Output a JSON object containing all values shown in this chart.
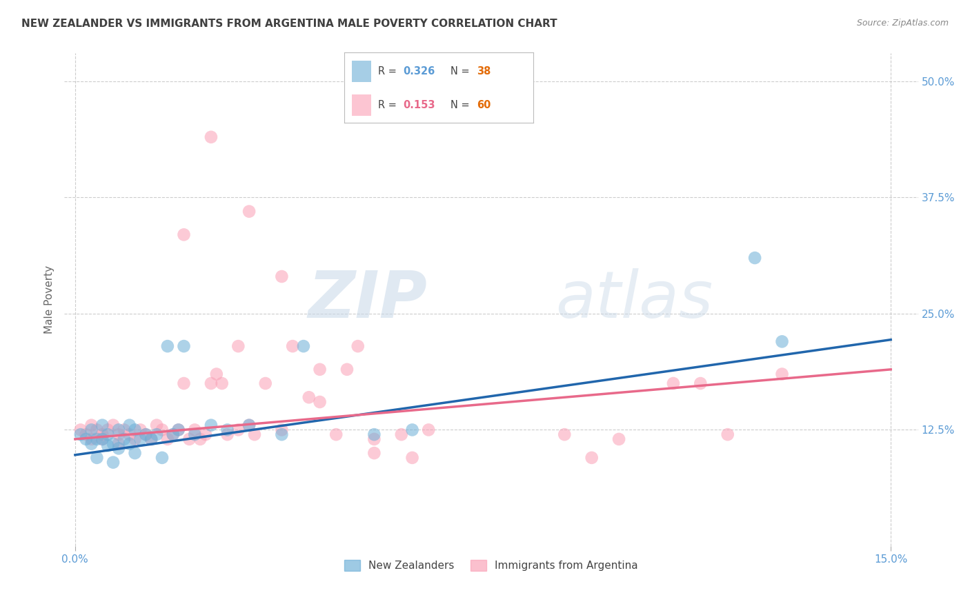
{
  "title": "NEW ZEALANDER VS IMMIGRANTS FROM ARGENTINA MALE POVERTY CORRELATION CHART",
  "source": "Source: ZipAtlas.com",
  "ylabel": "Male Poverty",
  "x_ticks": [
    0.0,
    0.15
  ],
  "x_tick_labels": [
    "0.0%",
    "15.0%"
  ],
  "y_ticks": [
    0.125,
    0.25,
    0.375,
    0.5
  ],
  "y_tick_labels": [
    "12.5%",
    "25.0%",
    "37.5%",
    "50.0%"
  ],
  "xlim": [
    -0.002,
    0.155
  ],
  "ylim": [
    0.0,
    0.53
  ],
  "blue_scatter_x": [
    0.001,
    0.002,
    0.003,
    0.003,
    0.004,
    0.004,
    0.005,
    0.005,
    0.006,
    0.006,
    0.007,
    0.007,
    0.008,
    0.008,
    0.009,
    0.01,
    0.01,
    0.011,
    0.011,
    0.012,
    0.013,
    0.014,
    0.015,
    0.016,
    0.017,
    0.018,
    0.019,
    0.02,
    0.022,
    0.025,
    0.028,
    0.032,
    0.038,
    0.042,
    0.055,
    0.062,
    0.125,
    0.13
  ],
  "blue_scatter_y": [
    0.12,
    0.115,
    0.125,
    0.11,
    0.115,
    0.095,
    0.13,
    0.115,
    0.12,
    0.108,
    0.11,
    0.09,
    0.125,
    0.105,
    0.115,
    0.13,
    0.11,
    0.125,
    0.1,
    0.115,
    0.12,
    0.115,
    0.12,
    0.095,
    0.215,
    0.12,
    0.125,
    0.215,
    0.12,
    0.13,
    0.125,
    0.13,
    0.12,
    0.215,
    0.12,
    0.125,
    0.31,
    0.22
  ],
  "pink_scatter_x": [
    0.001,
    0.002,
    0.003,
    0.003,
    0.004,
    0.005,
    0.005,
    0.006,
    0.007,
    0.008,
    0.008,
    0.009,
    0.01,
    0.011,
    0.012,
    0.013,
    0.014,
    0.015,
    0.016,
    0.017,
    0.018,
    0.019,
    0.02,
    0.021,
    0.022,
    0.023,
    0.024,
    0.025,
    0.026,
    0.027,
    0.028,
    0.03,
    0.032,
    0.033,
    0.035,
    0.038,
    0.04,
    0.043,
    0.045,
    0.048,
    0.05,
    0.052,
    0.055,
    0.06,
    0.065,
    0.02,
    0.03,
    0.045,
    0.055,
    0.09,
    0.095,
    0.1,
    0.115,
    0.12,
    0.038,
    0.025,
    0.032,
    0.062,
    0.11,
    0.13
  ],
  "pink_scatter_y": [
    0.125,
    0.12,
    0.13,
    0.115,
    0.125,
    0.12,
    0.115,
    0.125,
    0.13,
    0.12,
    0.11,
    0.125,
    0.12,
    0.115,
    0.125,
    0.12,
    0.115,
    0.13,
    0.125,
    0.115,
    0.12,
    0.125,
    0.175,
    0.115,
    0.125,
    0.115,
    0.12,
    0.175,
    0.185,
    0.175,
    0.12,
    0.125,
    0.13,
    0.12,
    0.175,
    0.125,
    0.215,
    0.16,
    0.155,
    0.12,
    0.19,
    0.215,
    0.115,
    0.12,
    0.125,
    0.335,
    0.215,
    0.19,
    0.1,
    0.12,
    0.095,
    0.115,
    0.175,
    0.12,
    0.29,
    0.44,
    0.36,
    0.095,
    0.175,
    0.185
  ],
  "blue_line_x": [
    0.0,
    0.15
  ],
  "blue_line_y": [
    0.098,
    0.222
  ],
  "pink_line_x": [
    0.0,
    0.15
  ],
  "pink_line_y": [
    0.115,
    0.19
  ],
  "scatter_size": 180,
  "blue_color": "#6BAED6",
  "pink_color": "#FA9FB5",
  "blue_line_color": "#2166AC",
  "pink_line_color": "#E8698A",
  "watermark_zip": "ZIP",
  "watermark_atlas": "atlas",
  "background_color": "#FFFFFF",
  "grid_color": "#CCCCCC",
  "tick_color": "#5B9BD5",
  "legend_r1": "0.326",
  "legend_n1": "38",
  "legend_r2": "0.153",
  "legend_n2": "60",
  "legend_label1": "New Zealanders",
  "legend_label2": "Immigrants from Argentina",
  "title_fontsize": 11,
  "axis_label_fontsize": 11,
  "orange_color": "#E36C09",
  "r_text_color1": "#5B9BD5",
  "r_text_color2": "#E8698A"
}
